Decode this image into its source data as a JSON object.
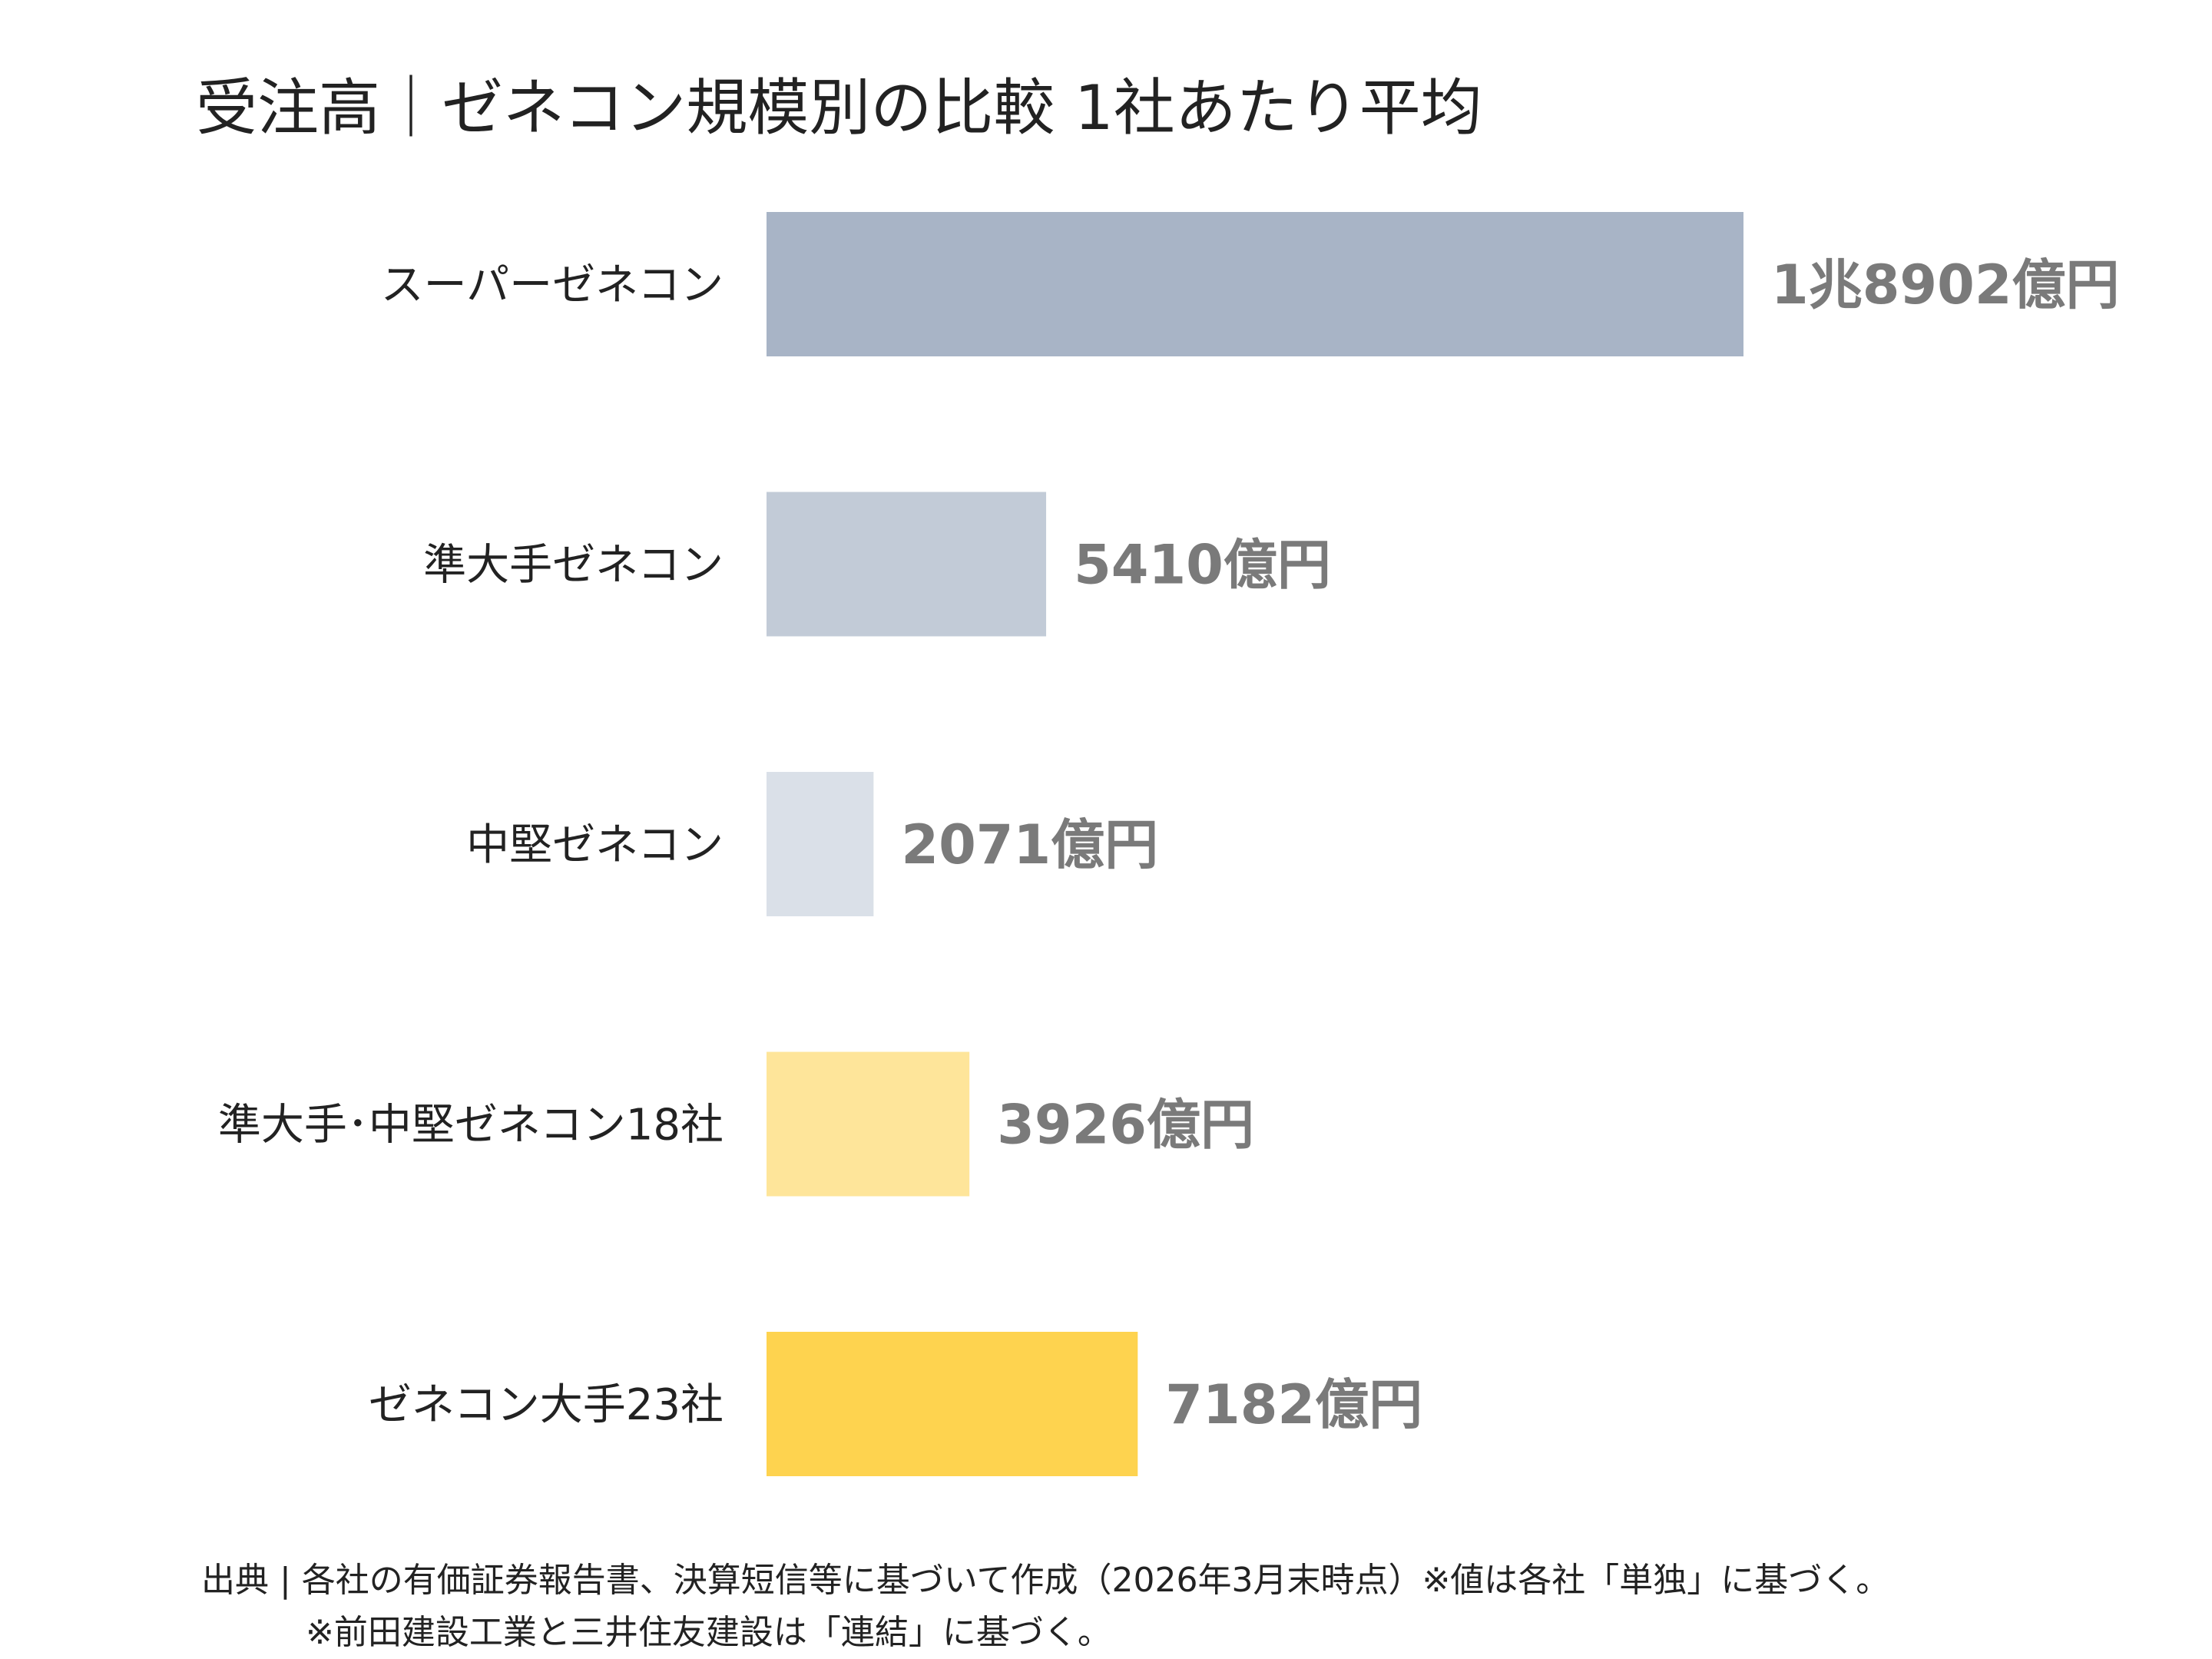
{
  "chart_data": {
    "type": "bar",
    "orientation": "horizontal",
    "title": "受注高｜ゼネコン規模別の比較 1社あたり平均",
    "categories": [
      "スーパーゼネコン",
      "準大手ゼネコン",
      "中堅ゼネコン",
      "準大手･中堅ゼネコン18社",
      "ゼネコン大手23社"
    ],
    "values": [
      18902,
      5410,
      2071,
      3926,
      7182
    ],
    "unit": "億円",
    "data_labels": [
      "1兆8902億円",
      "5410億円",
      "2071億円",
      "3926億円",
      "7182億円"
    ],
    "colors": [
      "#a8b4c6",
      "#c2cbd7",
      "#dae0e8",
      "#fee59a",
      "#fed34f"
    ],
    "value_label_color": "#7a7a7a",
    "xlim": [
      0,
      18902
    ],
    "grid": false,
    "legend": "none"
  },
  "source": {
    "line1": "出典 | 各社の有価証券報告書、決算短信等に基づいて作成（2026年3月末時点）※値は各社「単独」に基づく。",
    "line2": "※前田建設工業と三井住友建設は「連結」に基づく。"
  }
}
